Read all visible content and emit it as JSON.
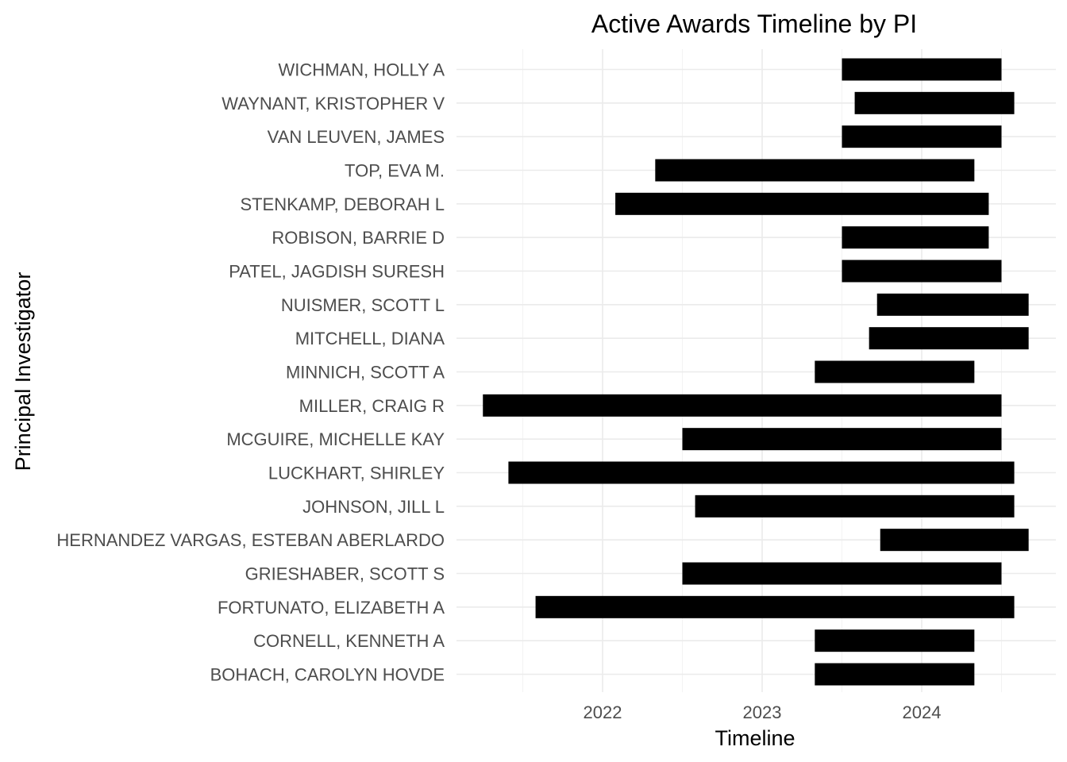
{
  "chart_data": {
    "type": "bar",
    "orientation": "horizontal-range",
    "title": "Active Awards Timeline by PI",
    "xlabel": "Timeline",
    "ylabel": "Principal Investigator",
    "xlim": [
      2021.25,
      2024.85
    ],
    "x_ticks": [
      2022,
      2023,
      2024
    ],
    "grid": true,
    "legend": "none",
    "bar_color": "#000000",
    "categories": [
      "BOHACH, CAROLYN HOVDE",
      "CORNELL, KENNETH A",
      "FORTUNATO, ELIZABETH A",
      "GRIESHABER, SCOTT S",
      "HERNANDEZ VARGAS, ESTEBAN ABERLARDO",
      "JOHNSON, JILL L",
      "LUCKHART, SHIRLEY",
      "MCGUIRE, MICHELLE KAY",
      "MILLER, CRAIG R",
      "MINNICH, SCOTT A",
      "MITCHELL, DIANA",
      "NUISMER, SCOTT L",
      "PATEL, JAGDISH SURESH",
      "ROBISON, BARRIE D",
      "STENKAMP, DEBORAH L",
      "TOP, EVA M.",
      "VAN LEUVEN, JAMES",
      "WAYNANT, KRISTOPHER V",
      "WICHMAN, HOLLY A"
    ],
    "start": [
      2023.33,
      2023.33,
      2021.58,
      2022.5,
      2023.74,
      2022.58,
      2021.41,
      2022.5,
      2021.25,
      2023.33,
      2023.67,
      2023.72,
      2023.5,
      2023.5,
      2022.08,
      2022.33,
      2023.5,
      2023.58,
      2023.5
    ],
    "end": [
      2024.33,
      2024.33,
      2024.58,
      2024.5,
      2024.67,
      2024.58,
      2024.58,
      2024.5,
      2024.5,
      2024.33,
      2024.67,
      2024.67,
      2024.5,
      2024.42,
      2024.42,
      2024.33,
      2024.5,
      2024.58,
      2024.5
    ]
  }
}
